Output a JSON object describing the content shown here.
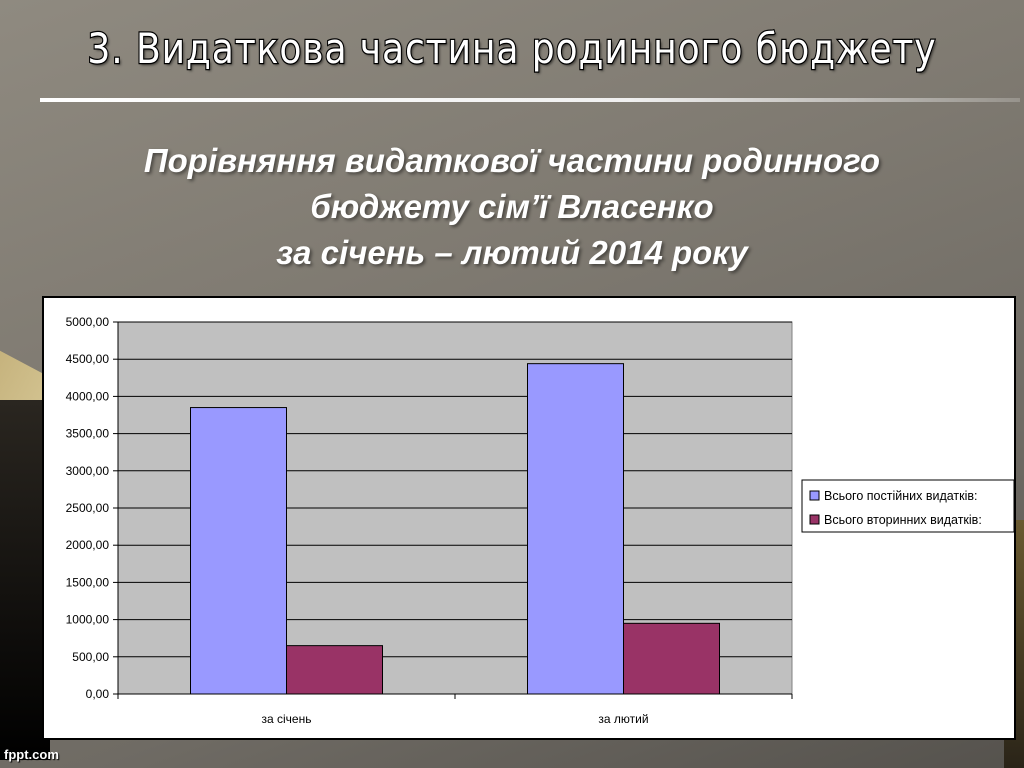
{
  "slide": {
    "title": "3. Видаткова частина родинного бюджету",
    "subtitle_lines": [
      "Порівняння видаткової частини родинного",
      "бюджету сім’ї Власенко",
      "за січень – лютий 2014 року"
    ],
    "footer": "fppt.com"
  },
  "chart_data": {
    "type": "bar",
    "categories": [
      "за січень",
      "за лютий"
    ],
    "series": [
      {
        "name": "Всього постійних видатків:",
        "values": [
          3850,
          4440
        ],
        "color": "#9999ff"
      },
      {
        "name": "Всього вторинних видатків:",
        "values": [
          650,
          950
        ],
        "color": "#993366"
      }
    ],
    "ylim": [
      0,
      5000
    ],
    "yticks": [
      "0,00",
      "500,00",
      "1000,00",
      "1500,00",
      "2000,00",
      "2500,00",
      "3000,00",
      "3500,00",
      "4000,00",
      "4500,00",
      "5000,00"
    ],
    "ytick_values": [
      0,
      500,
      1000,
      1500,
      2000,
      2500,
      3000,
      3500,
      4000,
      4500,
      5000
    ],
    "grid": true,
    "plot_background": "#c0c0c0",
    "legend_position": "right"
  }
}
